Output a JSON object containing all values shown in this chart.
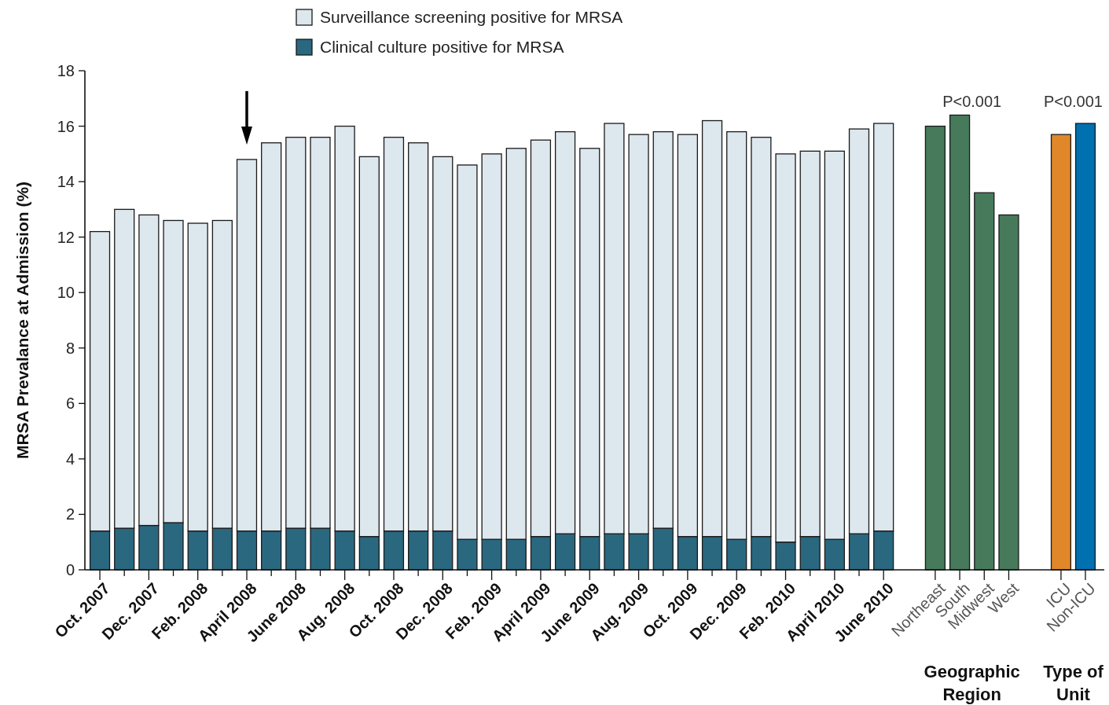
{
  "chart_data": [
    {
      "type": "bar",
      "stacked": true,
      "ylabel": "MRSA Prevalance at Admission (%)",
      "legend": "top",
      "categories": [
        "Oct. 2007",
        null,
        "Dec. 2007",
        null,
        "Feb. 2008",
        null,
        "April 2008",
        null,
        "June 2008",
        null,
        "Aug. 2008",
        null,
        "Oct. 2008",
        null,
        "Dec. 2008",
        null,
        "Feb. 2009",
        null,
        "April 2009",
        null,
        "June 2009",
        null,
        "Aug. 2009",
        null,
        "Oct. 2009",
        null,
        "Dec. 2009",
        null,
        "Feb. 2010",
        null,
        "April 2010",
        null,
        "June 2010"
      ],
      "series": [
        {
          "name": "Clinical culture positive for MRSA",
          "color": "#2a6880",
          "values": [
            1.4,
            1.5,
            1.6,
            1.7,
            1.4,
            1.5,
            1.4,
            1.4,
            1.5,
            1.5,
            1.4,
            1.2,
            1.4,
            1.4,
            1.4,
            1.1,
            1.1,
            1.1,
            1.2,
            1.3,
            1.2,
            1.3,
            1.3,
            1.5,
            1.2,
            1.2,
            1.1,
            1.2,
            1.0,
            1.2,
            1.1,
            1.3,
            1.4
          ]
        },
        {
          "name": "Surveillance screening positive for MRSA",
          "color": "#dde7ee",
          "values": [
            10.8,
            11.5,
            11.2,
            10.9,
            11.1,
            11.1,
            13.4,
            14.0,
            14.1,
            14.1,
            14.6,
            13.7,
            14.2,
            14.0,
            13.5,
            13.5,
            13.9,
            14.1,
            14.3,
            14.5,
            14.0,
            14.8,
            14.4,
            14.3,
            14.5,
            15.0,
            14.7,
            14.4,
            14.0,
            13.9,
            14.0,
            14.6,
            14.7
          ]
        }
      ],
      "ylim": [
        0,
        18
      ],
      "yticks": [
        0,
        2,
        4,
        6,
        8,
        10,
        12,
        14,
        16,
        18
      ]
    },
    {
      "type": "bar",
      "xlabel": "Geographic Region",
      "annotations": [
        "P<0.001"
      ],
      "categories": [
        "Northeast",
        "South",
        "Midwest",
        "West"
      ],
      "values": [
        16.0,
        16.4,
        13.6,
        12.8
      ],
      "color": "#467a5b",
      "ylim": [
        0,
        18
      ],
      "tick_labels": "x"
    },
    {
      "type": "bar",
      "xlabel": "Type of Unit",
      "annotations": [
        "P<0.001"
      ],
      "categories": [
        "ICU",
        "Non-ICU"
      ],
      "values": [
        15.7,
        16.1
      ],
      "colors": [
        "#e0872a",
        "#0070b0"
      ],
      "ylim": [
        0,
        18
      ],
      "tick_labels": "x"
    }
  ]
}
